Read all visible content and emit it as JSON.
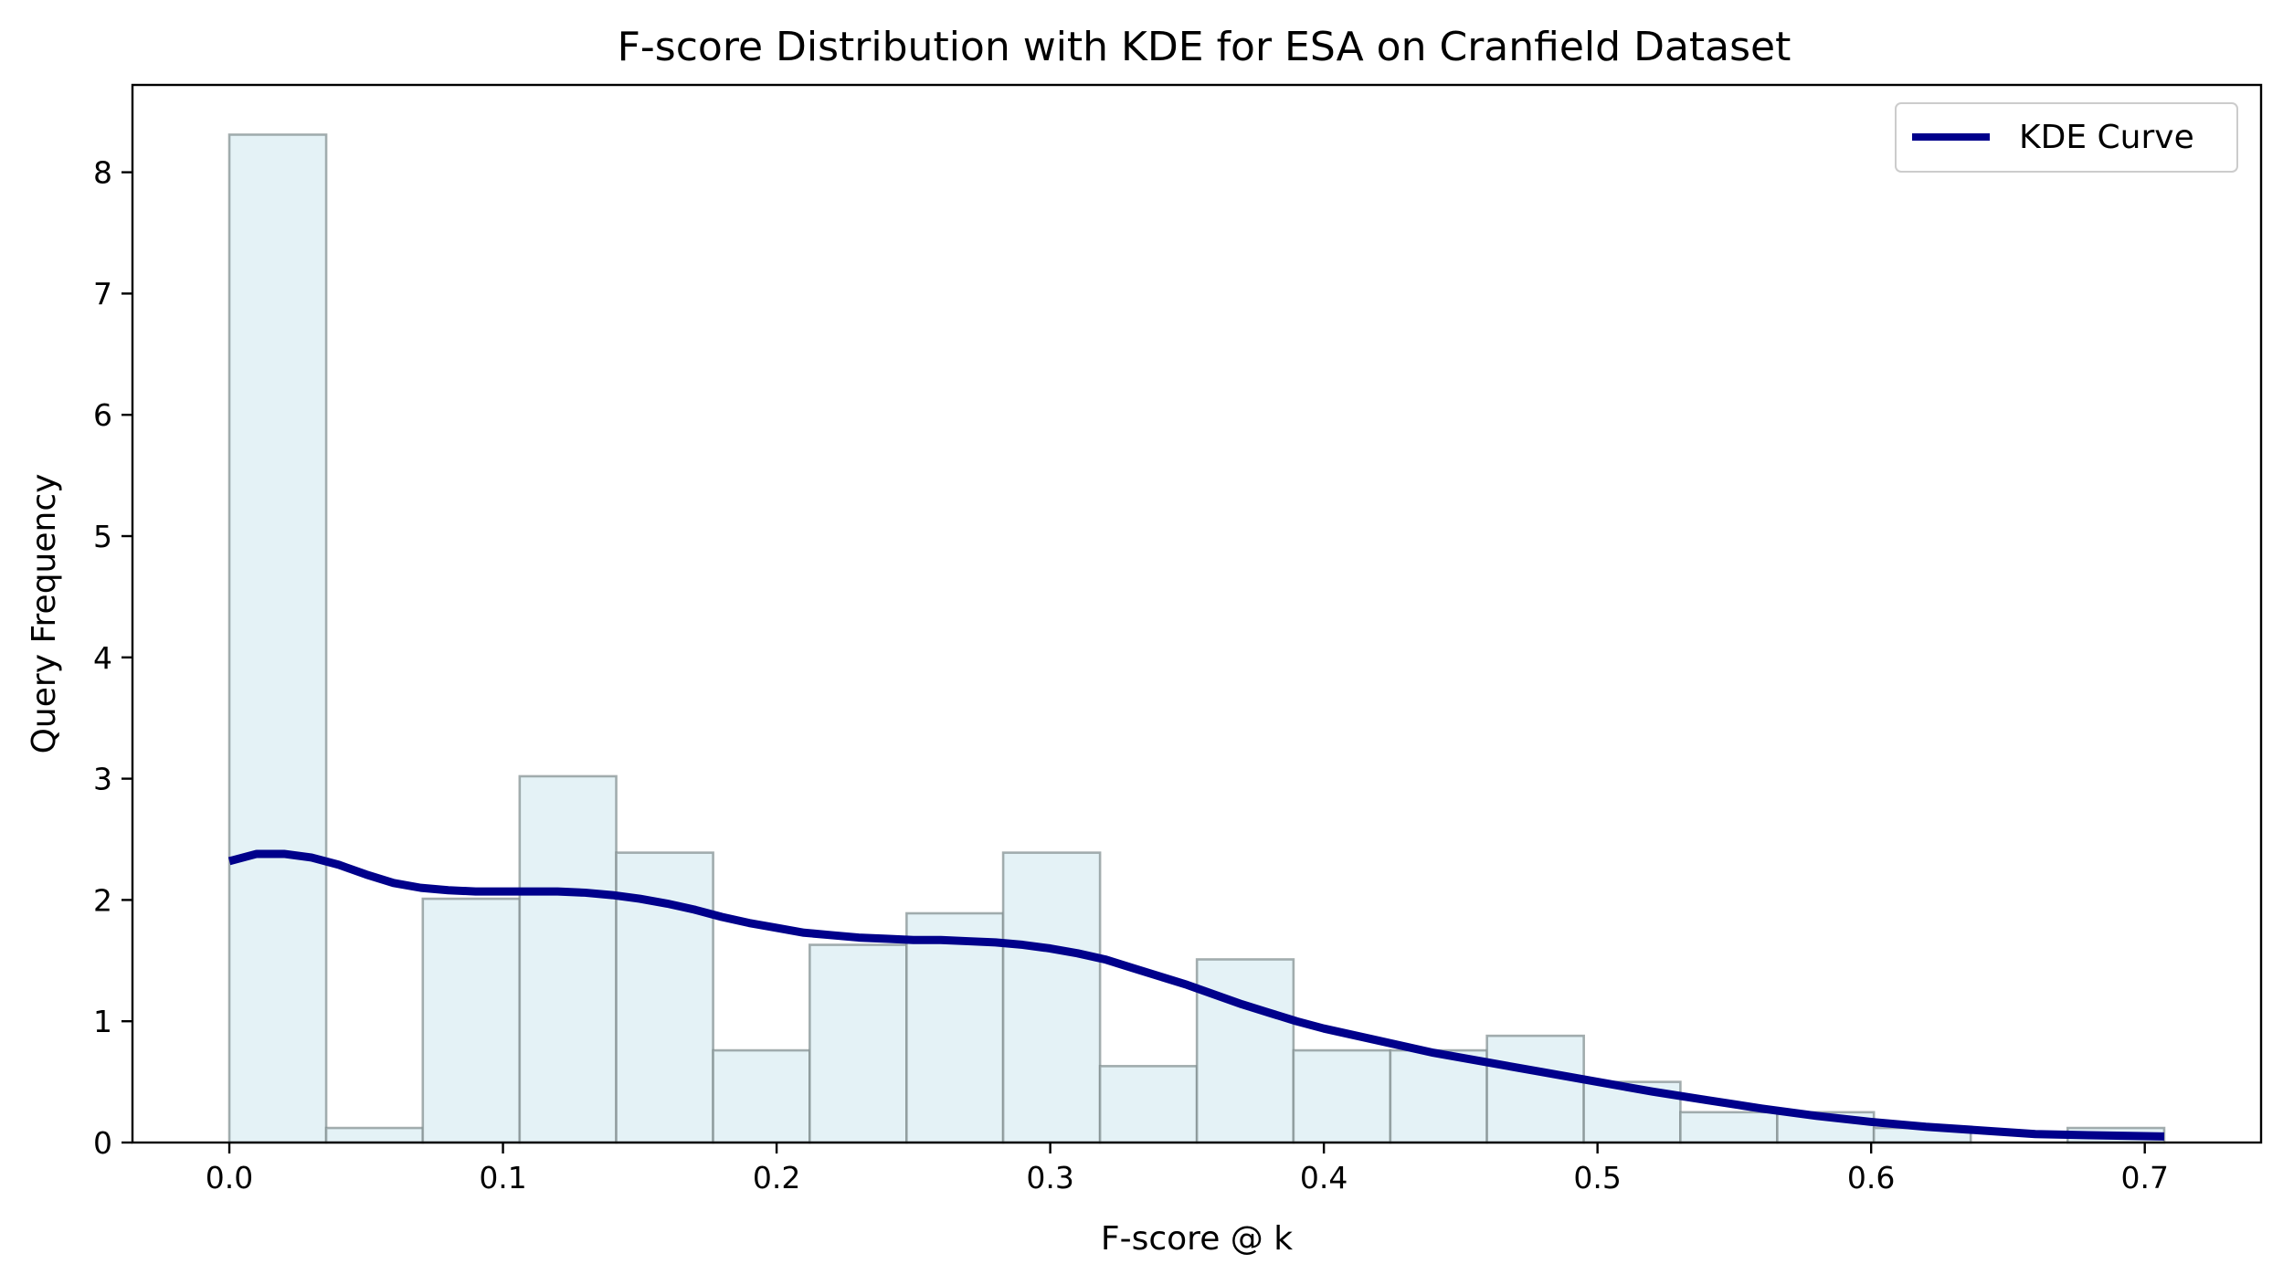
{
  "chart_data": {
    "type": "bar",
    "title": "F-score Distribution with KDE for ESA on Cranfield Dataset",
    "xlabel": "F-score @ k",
    "ylabel": "Query Frequency",
    "xlim": [
      -0.0354,
      0.7425
    ],
    "ylim": [
      0,
      8.72
    ],
    "x_ticks": [
      "0.0",
      "0.1",
      "0.2",
      "0.3",
      "0.4",
      "0.5",
      "0.6",
      "0.7"
    ],
    "y_ticks": [
      "0",
      "1",
      "2",
      "3",
      "4",
      "5",
      "6",
      "7",
      "8"
    ],
    "bin_edges": [
      0.0,
      0.0354,
      0.0707,
      0.1061,
      0.1414,
      0.1768,
      0.2121,
      0.2475,
      0.2828,
      0.3182,
      0.3536,
      0.3889,
      0.4243,
      0.4596,
      0.495,
      0.5303,
      0.5657,
      0.601,
      0.6364,
      0.6718,
      0.7071
    ],
    "values": [
      8.31,
      0.12,
      2.01,
      3.02,
      2.39,
      0.76,
      1.63,
      1.89,
      2.39,
      0.63,
      1.51,
      0.76,
      0.76,
      0.88,
      0.5,
      0.25,
      0.25,
      0.12,
      0.0,
      0.12
    ],
    "bar_color": "#e4f2f6",
    "bar_edge_color": "#7f8c8d",
    "series": [
      {
        "name": "KDE Curve",
        "type": "line",
        "color": "#00008b",
        "x": [
          0.0,
          0.01,
          0.02,
          0.03,
          0.04,
          0.05,
          0.06,
          0.07,
          0.08,
          0.09,
          0.1,
          0.11,
          0.12,
          0.13,
          0.14,
          0.15,
          0.16,
          0.17,
          0.18,
          0.19,
          0.2,
          0.21,
          0.22,
          0.23,
          0.24,
          0.25,
          0.26,
          0.27,
          0.28,
          0.29,
          0.3,
          0.31,
          0.32,
          0.33,
          0.34,
          0.35,
          0.36,
          0.37,
          0.38,
          0.39,
          0.4,
          0.42,
          0.44,
          0.46,
          0.48,
          0.5,
          0.52,
          0.54,
          0.56,
          0.58,
          0.6,
          0.62,
          0.64,
          0.66,
          0.68,
          0.7071
        ],
        "y": [
          2.32,
          2.38,
          2.38,
          2.35,
          2.29,
          2.21,
          2.14,
          2.1,
          2.08,
          2.07,
          2.07,
          2.07,
          2.07,
          2.06,
          2.04,
          2.01,
          1.97,
          1.92,
          1.86,
          1.81,
          1.77,
          1.73,
          1.71,
          1.69,
          1.68,
          1.67,
          1.67,
          1.66,
          1.65,
          1.63,
          1.6,
          1.56,
          1.51,
          1.44,
          1.37,
          1.3,
          1.22,
          1.14,
          1.07,
          1.0,
          0.94,
          0.84,
          0.74,
          0.66,
          0.58,
          0.5,
          0.42,
          0.35,
          0.28,
          0.22,
          0.17,
          0.13,
          0.1,
          0.07,
          0.06,
          0.05
        ]
      }
    ],
    "legend": {
      "position": "top-right",
      "entries": [
        "KDE Curve"
      ]
    },
    "grid": false
  }
}
